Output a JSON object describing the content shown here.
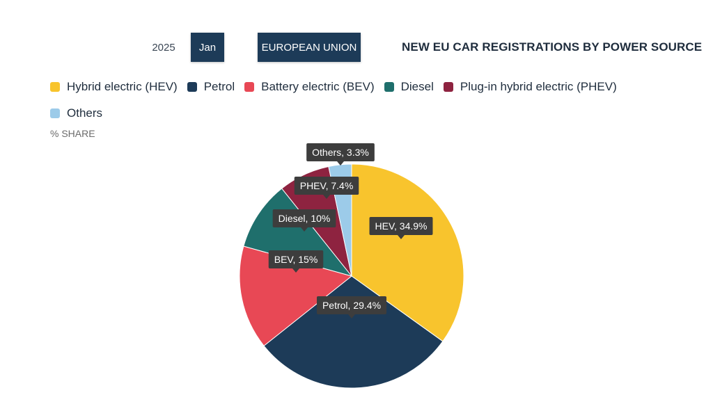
{
  "controls": {
    "year": "2025",
    "month": "Jan",
    "region": "EUROPEAN UNION"
  },
  "colors": {
    "hev": "#f8c42d",
    "petrol": "#1d3b58",
    "bev": "#e84855",
    "diesel": "#1f6f6c",
    "phev": "#8e2340",
    "others": "#9ccbe9",
    "tooltip": "#3d3d3d"
  },
  "chart_data": {
    "type": "pie",
    "title": "NEW EU CAR REGISTRATIONS BY POWER SOURCE",
    "unit": "% SHARE",
    "legend_position": "top-left",
    "legend": [
      "Hybrid electric (HEV)",
      "Petrol",
      "Battery electric (BEV)",
      "Diesel",
      "Plug-in hybrid electric (PHEV)",
      "Others"
    ],
    "slices": [
      {
        "key": "hev",
        "label": "HEV, 34.9%",
        "value": 34.9
      },
      {
        "key": "petrol",
        "label": "Petrol, 29.4%",
        "value": 29.4
      },
      {
        "key": "bev",
        "label": "BEV, 15%",
        "value": 15
      },
      {
        "key": "diesel",
        "label": "Diesel, 10%",
        "value": 10
      },
      {
        "key": "phev",
        "label": "PHEV, 7.4%",
        "value": 7.4
      },
      {
        "key": "others",
        "label": "Others, 3.3%",
        "value": 3.3
      }
    ]
  }
}
